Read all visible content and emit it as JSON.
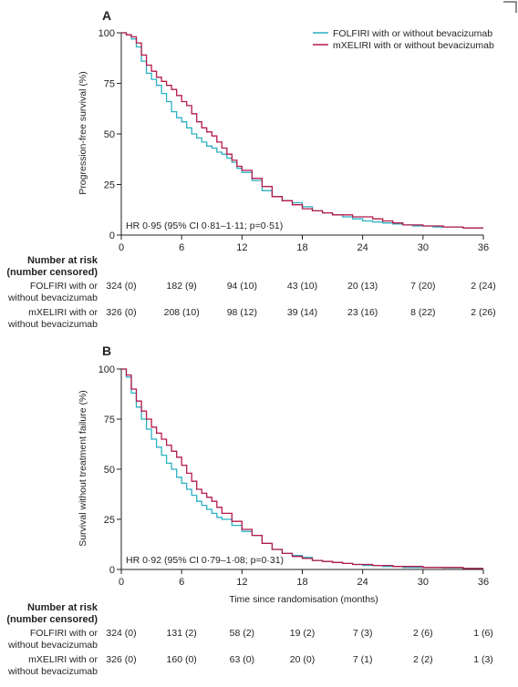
{
  "chart_data": [
    {
      "type": "line",
      "panel": "A",
      "ylabel": "Progression-free survival (%)",
      "xlabel": "",
      "xlim": [
        0,
        36
      ],
      "ylim": [
        0,
        100
      ],
      "xticks": [
        0,
        6,
        12,
        18,
        24,
        30,
        36
      ],
      "yticks": [
        0,
        25,
        50,
        75,
        100
      ],
      "annotation": "HR 0·95 (95% CI 0·81–1·11; p=0·51)",
      "legend_position": "top-right",
      "series": [
        {
          "name": "FOLFIRI with or without bevacizumab",
          "color": "#2bb0c4",
          "x": [
            0,
            0.5,
            1,
            1.5,
            2,
            2.5,
            3,
            3.5,
            4,
            4.5,
            5,
            5.5,
            6,
            6.5,
            7,
            7.5,
            8,
            8.5,
            9,
            9.5,
            10,
            10.5,
            11,
            11.5,
            12,
            13,
            14,
            15,
            16,
            17,
            18,
            19,
            20,
            21,
            22,
            23,
            24,
            25,
            26,
            27,
            28,
            29,
            30,
            31,
            32,
            33,
            34,
            35,
            36
          ],
          "y": [
            100,
            99,
            97,
            93,
            86,
            80,
            77,
            74,
            70,
            66,
            61,
            58,
            56,
            53,
            50,
            48,
            46,
            44,
            43,
            41,
            40,
            38,
            36,
            33,
            31,
            27,
            22,
            19,
            17,
            16,
            14,
            12,
            11,
            10,
            9,
            8,
            7,
            6.5,
            6,
            5.5,
            5,
            4.5,
            4.5,
            4,
            4,
            4,
            3.5,
            3.5,
            3.5
          ]
        },
        {
          "name": "mXELIRI with or without bevacizumab",
          "color": "#b5194a",
          "x": [
            0,
            0.5,
            1,
            1.5,
            2,
            2.5,
            3,
            3.5,
            4,
            4.5,
            5,
            5.5,
            6,
            6.5,
            7,
            7.5,
            8,
            8.5,
            9,
            9.5,
            10,
            10.5,
            11,
            11.5,
            12,
            13,
            14,
            15,
            16,
            17,
            18,
            19,
            20,
            21,
            22,
            23,
            24,
            25,
            26,
            27,
            28,
            29,
            30,
            31,
            32,
            33,
            34,
            35,
            36
          ],
          "y": [
            100,
            99,
            98,
            95,
            89,
            84,
            81,
            78,
            76,
            74,
            72,
            69,
            66,
            64,
            60,
            56,
            53,
            51,
            49,
            46,
            43,
            40,
            37,
            34,
            32,
            28,
            24,
            19,
            17,
            15,
            13,
            12,
            11,
            10,
            10,
            9,
            9,
            8,
            7,
            6,
            5,
            5,
            4.5,
            4.5,
            4,
            4,
            3.5,
            3.5,
            3.5
          ]
        }
      ],
      "risk_table": {
        "header_line1": "Number at risk",
        "header_line2": "(number censored)",
        "rows": [
          {
            "label_line1": "FOLFIRI with or",
            "label_line2": "without bevacizumab",
            "values": [
              "324 (0)",
              "182 (9)",
              "94 (10)",
              "43 (10)",
              "20 (13)",
              "7 (20)",
              "2 (24)"
            ]
          },
          {
            "label_line1": "mXELIRI with or",
            "label_line2": "without bevacizumab",
            "values": [
              "326 (0)",
              "208 (10)",
              "98 (12)",
              "39 (14)",
              "23 (16)",
              "8 (22)",
              "2 (26)"
            ]
          }
        ]
      }
    },
    {
      "type": "line",
      "panel": "B",
      "ylabel": "Survival without treatment failure (%)",
      "xlabel": "Time since randomisation (months)",
      "xlim": [
        0,
        36
      ],
      "ylim": [
        0,
        100
      ],
      "xticks": [
        0,
        6,
        12,
        18,
        24,
        30,
        36
      ],
      "yticks": [
        0,
        25,
        50,
        75,
        100
      ],
      "annotation": "HR 0·92 (95% CI 0·79–1·08; p=0·31)",
      "series": [
        {
          "color": "#2bb0c4",
          "x": [
            0,
            0.5,
            1,
            1.5,
            2,
            2.5,
            3,
            3.5,
            4,
            4.5,
            5,
            5.5,
            6,
            6.5,
            7,
            7.5,
            8,
            8.5,
            9,
            9.5,
            10,
            11,
            12,
            13,
            14,
            15,
            16,
            17,
            18,
            19,
            20,
            21,
            22,
            23,
            24,
            25,
            26,
            27,
            28,
            30,
            32,
            34,
            36
          ],
          "y": [
            100,
            96,
            88,
            81,
            75,
            70,
            65,
            61,
            57,
            53,
            50,
            46,
            43,
            40,
            37,
            34,
            32,
            30,
            28,
            26,
            25,
            22,
            19,
            17,
            13,
            10,
            8,
            7,
            6,
            4.5,
            4,
            3.5,
            3,
            2.5,
            2,
            2,
            1.5,
            1.5,
            1,
            1,
            0.8,
            0.5,
            0.5
          ]
        },
        {
          "color": "#b5194a",
          "x": [
            0,
            0.5,
            1,
            1.5,
            2,
            2.5,
            3,
            3.5,
            4,
            4.5,
            5,
            5.5,
            6,
            6.5,
            7,
            7.5,
            8,
            8.5,
            9,
            9.5,
            10,
            11,
            12,
            13,
            14,
            15,
            16,
            17,
            18,
            19,
            20,
            21,
            22,
            23,
            24,
            25,
            26,
            27,
            28,
            30,
            32,
            34,
            36
          ],
          "y": [
            100,
            97,
            90,
            84,
            79,
            75,
            71,
            68,
            65,
            62,
            59,
            56,
            52,
            48,
            44,
            40,
            38,
            36,
            34,
            31,
            28,
            24,
            20,
            17,
            13,
            10,
            8,
            6.5,
            5.5,
            4.5,
            4,
            3.5,
            3,
            2.5,
            2.5,
            2,
            2,
            1.5,
            1.5,
            1,
            1,
            0.5,
            0.5
          ]
        }
      ],
      "risk_table": {
        "header_line1": "Number at risk",
        "header_line2": "(number censored)",
        "rows": [
          {
            "label_line1": "FOLFIRI with or",
            "label_line2": "without bevacizumab",
            "values": [
              "324 (0)",
              "131 (2)",
              "58 (2)",
              "19 (2)",
              "7 (3)",
              "2 (6)",
              "1 (6)"
            ]
          },
          {
            "label_line1": "mXELIRI with or",
            "label_line2": "without bevacizumab",
            "values": [
              "326 (0)",
              "160 (0)",
              "63 (0)",
              "20 (0)",
              "7 (1)",
              "2 (2)",
              "1 (3)"
            ]
          }
        ]
      }
    }
  ]
}
